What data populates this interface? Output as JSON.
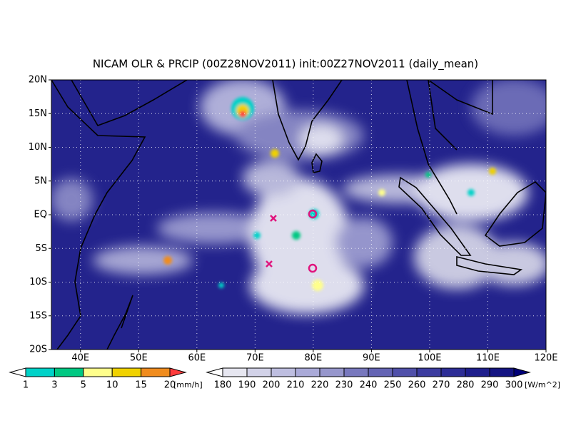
{
  "title": "NICAM OLR & PRCIP (00Z28NOV2011) init:00Z27NOV2011 (daily_mean)",
  "map": {
    "lat_labels": [
      "20N",
      "15N",
      "10N",
      "5N",
      "EQ",
      "5S",
      "10S",
      "15S",
      "20S"
    ],
    "lon_labels": [
      "40E",
      "50E",
      "60E",
      "70E",
      "80E",
      "90E",
      "100E",
      "110E",
      "120E"
    ]
  },
  "precip_colorbar": {
    "ticks": [
      1,
      3,
      5,
      10,
      15,
      20
    ],
    "unit": "[mm/h]",
    "colors": [
      "#ffffff",
      "#00d2c8",
      "#00c882",
      "#ffff8c",
      "#f0d200",
      "#f08c1e",
      "#ff3c3c"
    ]
  },
  "olr_colorbar": {
    "ticks": [
      180,
      190,
      200,
      210,
      220,
      230,
      240,
      250,
      260,
      270,
      280,
      290,
      300
    ],
    "unit": "[W/m^2]",
    "colors": [
      "#ffffff",
      "#e6e6f0",
      "#d2d2e8",
      "#bebee0",
      "#aaaad8",
      "#9696cc",
      "#7878be",
      "#6464b4",
      "#5050aa",
      "#3c3ca0",
      "#2d2d96",
      "#1e1e8c",
      "#141482",
      "#000078"
    ]
  }
}
